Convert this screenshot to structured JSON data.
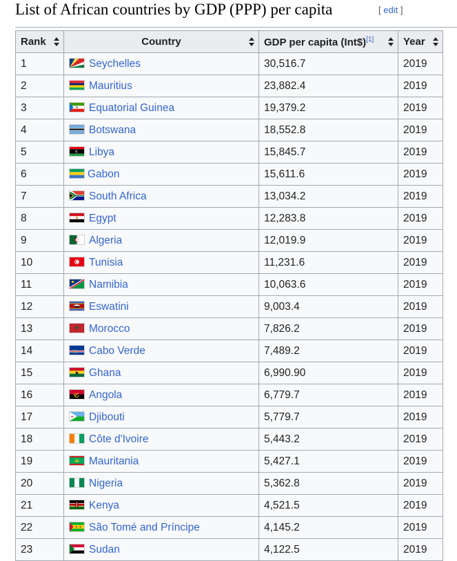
{
  "heading": {
    "title": "List of African countries by GDP (PPP) per capita",
    "edit_open": "[ ",
    "edit": "edit",
    "edit_close": " ]"
  },
  "table": {
    "headers": {
      "rank": "Rank",
      "country": "Country",
      "gdp": "GDP per capita (Int$)",
      "ref": "[1]",
      "year": "Year"
    },
    "rows": [
      {
        "rank": "1",
        "country": "Seychelles",
        "gdp": "30,516.7",
        "year": "2019",
        "flag": "seychelles-flag-icon"
      },
      {
        "rank": "2",
        "country": "Mauritius",
        "gdp": "23,882.4",
        "year": "2019",
        "flag": "mauritius-flag-icon"
      },
      {
        "rank": "3",
        "country": "Equatorial Guinea",
        "gdp": "19,379.2",
        "year": "2019",
        "flag": "equatorial-guinea-flag-icon"
      },
      {
        "rank": "4",
        "country": "Botswana",
        "gdp": "18,552.8",
        "year": "2019",
        "flag": "botswana-flag-icon"
      },
      {
        "rank": "5",
        "country": "Libya",
        "gdp": "15,845.7",
        "year": "2019",
        "flag": "libya-flag-icon"
      },
      {
        "rank": "6",
        "country": "Gabon",
        "gdp": "15,611.6",
        "year": "2019",
        "flag": "gabon-flag-icon"
      },
      {
        "rank": "7",
        "country": "South Africa",
        "gdp": "13,034.2",
        "year": "2019",
        "flag": "south-africa-flag-icon"
      },
      {
        "rank": "8",
        "country": "Egypt",
        "gdp": "12,283.8",
        "year": "2019",
        "flag": "egypt-flag-icon"
      },
      {
        "rank": "9",
        "country": "Algeria",
        "gdp": "12,019.9",
        "year": "2019",
        "flag": "algeria-flag-icon"
      },
      {
        "rank": "10",
        "country": "Tunisia",
        "gdp": "11,231.6",
        "year": "2019",
        "flag": "tunisia-flag-icon"
      },
      {
        "rank": "11",
        "country": "Namibia",
        "gdp": "10,063.6",
        "year": "2019",
        "flag": "namibia-flag-icon"
      },
      {
        "rank": "12",
        "country": "Eswatini",
        "gdp": "9,003.4",
        "year": "2019",
        "flag": "eswatini-flag-icon"
      },
      {
        "rank": "13",
        "country": "Morocco",
        "gdp": "7,826.2",
        "year": "2019",
        "flag": "morocco-flag-icon"
      },
      {
        "rank": "14",
        "country": "Cabo Verde",
        "gdp": "7,489.2",
        "year": "2019",
        "flag": "cabo-verde-flag-icon"
      },
      {
        "rank": "15",
        "country": "Ghana",
        "gdp": "6,990.90",
        "year": "2019",
        "flag": "ghana-flag-icon"
      },
      {
        "rank": "16",
        "country": "Angola",
        "gdp": "6,779.7",
        "year": "2019",
        "flag": "angola-flag-icon"
      },
      {
        "rank": "17",
        "country": "Djibouti",
        "gdp": "5,779.7",
        "year": "2019",
        "flag": "djibouti-flag-icon"
      },
      {
        "rank": "18",
        "country": "Côte d'Ivoire",
        "gdp": "5,443.2",
        "year": "2019",
        "flag": "cote-divoire-flag-icon"
      },
      {
        "rank": "19",
        "country": "Mauritania",
        "gdp": "5,427.1",
        "year": "2019",
        "flag": "mauritania-flag-icon"
      },
      {
        "rank": "20",
        "country": "Nigeria",
        "gdp": "5,362.8",
        "year": "2019",
        "flag": "nigeria-flag-icon"
      },
      {
        "rank": "21",
        "country": "Kenya",
        "gdp": "4,521.5",
        "year": "2019",
        "flag": "kenya-flag-icon"
      },
      {
        "rank": "22",
        "country": "São Tomé and Príncipe",
        "gdp": "4,145.2",
        "year": "2019",
        "flag": "sao-tome-flag-icon"
      },
      {
        "rank": "23",
        "country": "Sudan",
        "gdp": "4,122.5",
        "year": "2019",
        "flag": "sudan-flag-icon"
      }
    ]
  },
  "colors": {
    "link": "#3366cc",
    "header_bg": "#eaecf0",
    "row_bg": "#f8f9fa",
    "border": "#a2a9b1"
  }
}
